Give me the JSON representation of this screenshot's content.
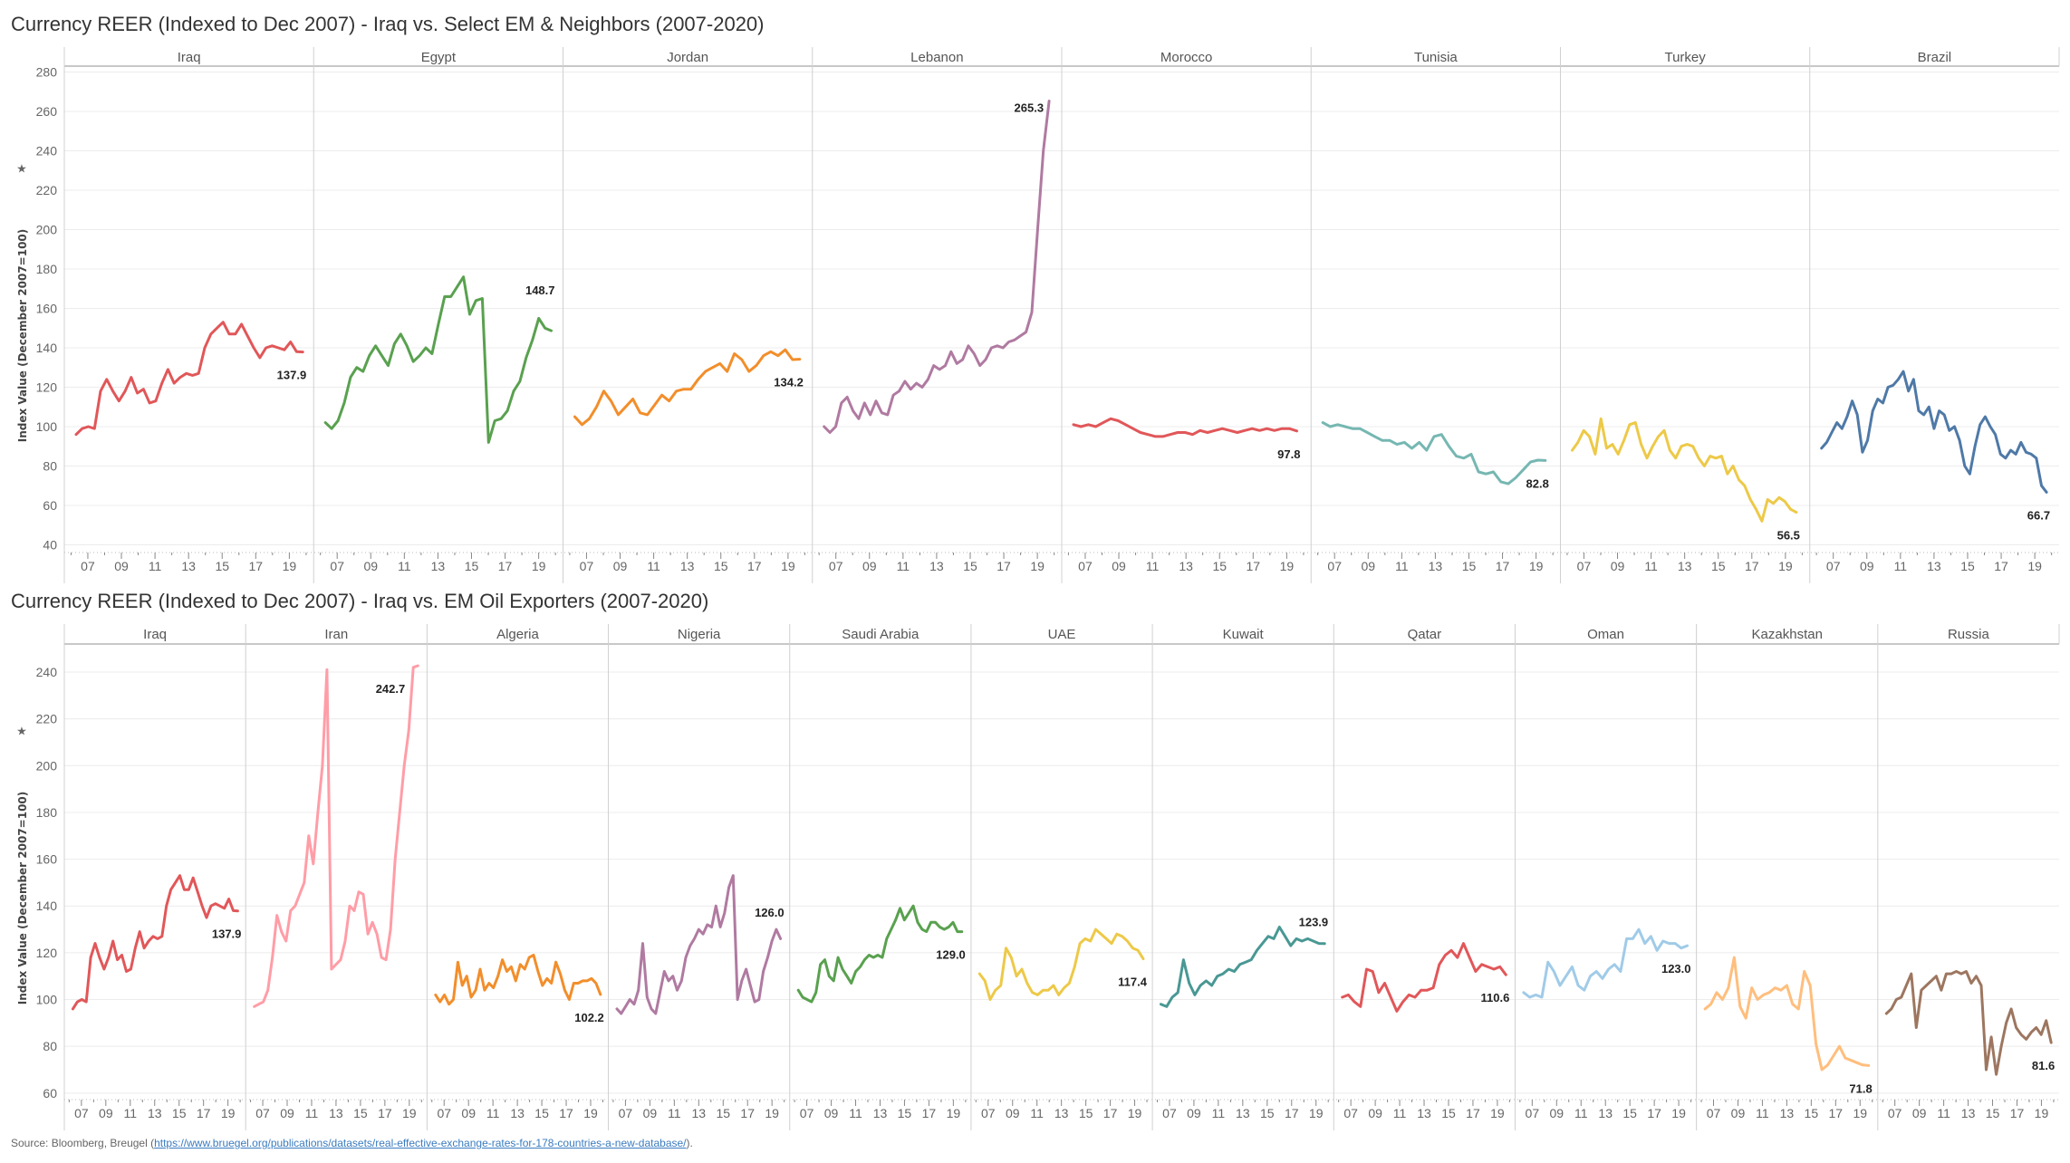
{
  "chart_data": [
    {
      "type": "line",
      "title": "Currency REER (Indexed to Dec 2007) - Iraq vs. Select EM & Neighbors (2007-2020)",
      "ylabel": "Index Value (December 2007=100)",
      "ylim": [
        37,
        283
      ],
      "yticks": [
        40,
        60,
        80,
        100,
        120,
        140,
        160,
        180,
        200,
        220,
        240,
        260,
        280
      ],
      "xlim": [
        2005.6,
        2020.45
      ],
      "x_tick_labels": [
        "07",
        "09",
        "11",
        "13",
        "15",
        "17",
        "19"
      ],
      "grid": true,
      "panels": [
        {
          "name": "Iraq",
          "color": "#e15759",
          "end_label": "137.9",
          "start": 2006.3,
          "end": 2019.8,
          "values": [
            96,
            99,
            100,
            99,
            118,
            124,
            118,
            113,
            118,
            125,
            117,
            119,
            112,
            113,
            122,
            129,
            122,
            125,
            127,
            126,
            127,
            140,
            147,
            150,
            153,
            147,
            147,
            152,
            146,
            140,
            135,
            140,
            141,
            140,
            139,
            143,
            138,
            137.9
          ]
        },
        {
          "name": "Egypt",
          "color": "#59a14f",
          "end_label": "148.7",
          "start": 2006.3,
          "end": 2019.75,
          "values": [
            102,
            99,
            103,
            112,
            125,
            130,
            128,
            136,
            141,
            136,
            131,
            142,
            147,
            141,
            133,
            136,
            140,
            137,
            152,
            166,
            166,
            171,
            176,
            157,
            164,
            165,
            92,
            103,
            104,
            108,
            118,
            123,
            135,
            144,
            155,
            150,
            148.7
          ]
        },
        {
          "name": "Jordan",
          "color": "#f28e2b",
          "end_label": "134.2",
          "start": 2006.3,
          "end": 2019.7,
          "values": [
            105,
            101,
            104,
            110,
            118,
            113,
            106,
            110,
            114,
            107,
            106,
            111,
            116,
            113,
            118,
            119,
            119,
            124,
            128,
            130,
            132,
            128,
            137,
            134,
            128,
            131,
            136,
            138,
            136,
            139,
            134,
            134.2
          ]
        },
        {
          "name": "Lebanon",
          "color": "#b07aa1",
          "end_label": "265.3",
          "start": 2006.3,
          "end": 2019.7,
          "values": [
            100,
            97,
            100,
            112,
            115,
            108,
            104,
            112,
            106,
            113,
            107,
            106,
            116,
            118,
            123,
            119,
            122,
            120,
            124,
            131,
            129,
            131,
            138,
            132,
            134,
            141,
            137,
            131,
            134,
            140,
            141,
            140,
            143,
            144,
            146,
            148,
            158,
            200,
            240,
            265.3
          ]
        },
        {
          "name": "Morocco",
          "color": "#e15759",
          "end_label": "97.8",
          "start": 2006.3,
          "end": 2019.6,
          "values": [
            101,
            100,
            101,
            100,
            102,
            104,
            103,
            101,
            99,
            97,
            96,
            95,
            95,
            96,
            97,
            97,
            96,
            98,
            97,
            98,
            99,
            98,
            97,
            98,
            99,
            98,
            99,
            98,
            99,
            99,
            97.8
          ]
        },
        {
          "name": "Tunisia",
          "color": "#76b7b2",
          "end_label": "82.8",
          "start": 2006.3,
          "end": 2019.55,
          "values": [
            102,
            100,
            101,
            100,
            99,
            99,
            97,
            95,
            93,
            93,
            91,
            92,
            89,
            92,
            88,
            95,
            96,
            90,
            85,
            84,
            86,
            77,
            76,
            77,
            72,
            71,
            74,
            78,
            82,
            83,
            82.8
          ]
        },
        {
          "name": "Turkey",
          "color": "#edc948",
          "end_label": "56.5",
          "start": 2006.3,
          "end": 2019.65,
          "values": [
            88,
            92,
            98,
            95,
            86,
            104,
            89,
            91,
            86,
            93,
            101,
            102,
            91,
            84,
            90,
            95,
            98,
            88,
            84,
            90,
            91,
            90,
            84,
            80,
            85,
            84,
            85,
            76,
            80,
            73,
            70,
            63,
            58,
            52,
            63,
            61,
            64,
            62,
            58,
            56.5
          ]
        },
        {
          "name": "Brazil",
          "color": "#4e79a7",
          "end_label": "66.7",
          "start": 2006.3,
          "end": 2019.7,
          "values": [
            89,
            92,
            97,
            102,
            99,
            105,
            113,
            106,
            87,
            93,
            108,
            114,
            112,
            120,
            121,
            124,
            128,
            118,
            124,
            108,
            106,
            110,
            99,
            108,
            106,
            98,
            100,
            93,
            80,
            76,
            90,
            101,
            105,
            100,
            96,
            86,
            84,
            88,
            86,
            92,
            87,
            86,
            84,
            70,
            66.7
          ]
        }
      ]
    },
    {
      "type": "line",
      "title": "Currency REER (Indexed to Dec 2007) - Iraq vs. EM Oil Exporters (2007-2020)",
      "ylabel": "Index Value (December 2007=100)",
      "ylim": [
        58,
        252
      ],
      "yticks": [
        60,
        80,
        100,
        120,
        140,
        160,
        180,
        200,
        220,
        240
      ],
      "xlim": [
        2005.6,
        2020.45
      ],
      "x_tick_labels": [
        "07",
        "09",
        "11",
        "13",
        "15",
        "17",
        "19"
      ],
      "grid": true,
      "panels": [
        {
          "name": "Iraq",
          "color": "#e15759",
          "end_label": "137.9",
          "start": 2006.3,
          "end": 2019.8,
          "values": [
            96,
            99,
            100,
            99,
            118,
            124,
            118,
            113,
            118,
            125,
            117,
            119,
            112,
            113,
            122,
            129,
            122,
            125,
            127,
            126,
            127,
            140,
            147,
            150,
            153,
            147,
            147,
            152,
            146,
            140,
            135,
            140,
            141,
            140,
            139,
            143,
            138,
            137.9
          ]
        },
        {
          "name": "Iran",
          "color": "#ff9da7",
          "end_label": "242.7",
          "start": 2006.3,
          "end": 2019.7,
          "values": [
            97,
            98,
            99,
            104,
            118,
            136,
            129,
            125,
            138,
            140,
            145,
            150,
            170,
            158,
            180,
            200,
            241,
            113,
            115,
            117,
            125,
            140,
            138,
            146,
            145,
            128,
            133,
            128,
            118,
            117,
            130,
            160,
            180,
            200,
            215,
            242,
            242.7
          ]
        },
        {
          "name": "Algeria",
          "color": "#f28e2b",
          "end_label": "102.2",
          "start": 2006.3,
          "end": 2019.8,
          "values": [
            102,
            99,
            102,
            98,
            100,
            116,
            106,
            110,
            101,
            104,
            113,
            104,
            107,
            105,
            110,
            117,
            112,
            114,
            108,
            115,
            113,
            118,
            119,
            112,
            106,
            109,
            107,
            116,
            111,
            104,
            100,
            107,
            107,
            108,
            108,
            109,
            107,
            102.2
          ]
        },
        {
          "name": "Nigeria",
          "color": "#b07aa1",
          "end_label": "126.0",
          "start": 2006.3,
          "end": 2019.7,
          "values": [
            96,
            94,
            97,
            100,
            98,
            104,
            124,
            101,
            96,
            94,
            103,
            112,
            108,
            110,
            104,
            108,
            118,
            123,
            126,
            130,
            128,
            132,
            131,
            140,
            131,
            137,
            148,
            153,
            100,
            108,
            113,
            106,
            99,
            100,
            112,
            118,
            125,
            130,
            126
          ]
        },
        {
          "name": "Saudi Arabia",
          "color": "#59a14f",
          "end_label": "129.0",
          "start": 2006.3,
          "end": 2019.7,
          "values": [
            104,
            101,
            100,
            99,
            103,
            115,
            117,
            110,
            108,
            118,
            113,
            110,
            107,
            112,
            114,
            117,
            119,
            118,
            119,
            118,
            126,
            130,
            134,
            139,
            134,
            137,
            140,
            133,
            130,
            129,
            133,
            133,
            131,
            130,
            131,
            133,
            129,
            129
          ]
        },
        {
          "name": "UAE",
          "color": "#edc948",
          "end_label": "117.4",
          "start": 2006.3,
          "end": 2019.7,
          "values": [
            111,
            108,
            100,
            104,
            106,
            122,
            118,
            110,
            113,
            107,
            103,
            102,
            104,
            104,
            106,
            102,
            105,
            107,
            114,
            124,
            126,
            125,
            130,
            128,
            126,
            124,
            128,
            127,
            125,
            122,
            121,
            117.4
          ]
        },
        {
          "name": "Kuwait",
          "color": "#499894",
          "end_label": "123.9",
          "start": 2006.3,
          "end": 2019.7,
          "values": [
            98,
            97,
            101,
            103,
            117,
            107,
            102,
            106,
            108,
            106,
            110,
            111,
            113,
            112,
            115,
            116,
            117,
            121,
            124,
            127,
            126,
            131,
            127,
            123,
            126,
            125,
            126,
            125,
            124,
            123.9
          ]
        },
        {
          "name": "Qatar",
          "color": "#e15759",
          "end_label": "110.6",
          "start": 2006.3,
          "end": 2019.7,
          "values": [
            101,
            102,
            99,
            97,
            113,
            112,
            103,
            107,
            101,
            95,
            99,
            102,
            101,
            104,
            104,
            105,
            115,
            119,
            121,
            118,
            124,
            118,
            112,
            115,
            114,
            113,
            114,
            110.6
          ]
        },
        {
          "name": "Oman",
          "color": "#a0cbe8",
          "end_label": "123.0",
          "start": 2006.3,
          "end": 2019.7,
          "values": [
            103,
            101,
            102,
            101,
            116,
            112,
            106,
            110,
            114,
            106,
            104,
            110,
            112,
            109,
            113,
            115,
            112,
            126,
            126,
            130,
            124,
            127,
            121,
            125,
            124,
            124,
            122,
            123
          ]
        },
        {
          "name": "Kazakhstan",
          "color": "#ffbe7d",
          "end_label": "71.8",
          "start": 2006.3,
          "end": 2019.7,
          "values": [
            96,
            98,
            103,
            100,
            105,
            118,
            97,
            92,
            105,
            100,
            102,
            103,
            105,
            104,
            106,
            98,
            96,
            112,
            106,
            81,
            70,
            72,
            76,
            80,
            75,
            74,
            73,
            72,
            71.8
          ]
        },
        {
          "name": "Russia",
          "color": "#9d7660",
          "end_label": "81.6",
          "start": 2006.3,
          "end": 2019.8,
          "values": [
            94,
            96,
            100,
            101,
            106,
            111,
            88,
            104,
            106,
            108,
            110,
            104,
            111,
            111,
            112,
            111,
            112,
            107,
            110,
            106,
            70,
            84,
            68,
            80,
            90,
            96,
            88,
            85,
            83,
            86,
            88,
            85,
            91,
            81.6
          ]
        }
      ]
    }
  ],
  "source": {
    "prefix": "Source: Bloomberg, Breugel (",
    "link": "https://www.bruegel.org/publications/datasets/real-effective-exchange-rates-for-178-countries-a-new-database/",
    "suffix": ")."
  }
}
